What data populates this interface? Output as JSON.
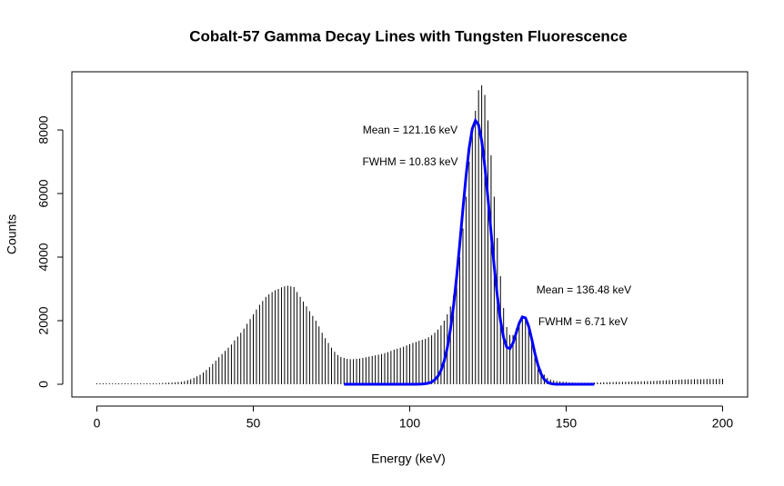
{
  "chart_data": {
    "type": "spike",
    "title": "Cobalt-57 Gamma Decay Lines with Tungsten Fluorescence",
    "x_label": "Energy (keV)",
    "y_label": "Counts",
    "annotations": [
      "Mean = 121.16 keV",
      "FWHM = 10.83 keV",
      "Mean = 136.48 keV",
      "FWHM = 6.71 keV"
    ],
    "xlim": [
      -8,
      208
    ],
    "xticks": [
      0,
      50,
      100,
      150,
      200
    ],
    "ylim": [
      -400,
      9830
    ],
    "yticks": [
      0,
      2000,
      4000,
      6000,
      8000
    ],
    "series": [
      {
        "type": "spike",
        "color": "#000000",
        "x": [
          0,
          1,
          2,
          3,
          4,
          5,
          6,
          7,
          8,
          9,
          10,
          11,
          12,
          13,
          14,
          15,
          16,
          17,
          18,
          19,
          20,
          21,
          22,
          23,
          24,
          25,
          26,
          27,
          28,
          29,
          30,
          31,
          32,
          33,
          34,
          35,
          36,
          37,
          38,
          39,
          40,
          41,
          42,
          43,
          44,
          45,
          46,
          47,
          48,
          49,
          50,
          51,
          52,
          53,
          54,
          55,
          56,
          57,
          58,
          59,
          60,
          61,
          62,
          63,
          64,
          65,
          66,
          67,
          68,
          69,
          70,
          71,
          72,
          73,
          74,
          75,
          76,
          77,
          78,
          79,
          80,
          81,
          82,
          83,
          84,
          85,
          86,
          87,
          88,
          89,
          90,
          91,
          92,
          93,
          94,
          95,
          96,
          97,
          98,
          99,
          100,
          101,
          102,
          103,
          104,
          105,
          106,
          107,
          108,
          109,
          110,
          111,
          112,
          113,
          114,
          115,
          116,
          117,
          118,
          119,
          120,
          121,
          122,
          123,
          124,
          125,
          126,
          127,
          128,
          129,
          130,
          131,
          132,
          133,
          134,
          135,
          136,
          137,
          138,
          139,
          140,
          141,
          142,
          143,
          144,
          145,
          146,
          147,
          148,
          149,
          150,
          151,
          152,
          153,
          154,
          155,
          156,
          157,
          158,
          159,
          160,
          161,
          162,
          163,
          164,
          165,
          166,
          167,
          168,
          169,
          170,
          171,
          172,
          173,
          174,
          175,
          176,
          177,
          178,
          179,
          180,
          181,
          182,
          183,
          184,
          185,
          186,
          187,
          188,
          189,
          190,
          191,
          192,
          193,
          194,
          195,
          196,
          197,
          198,
          199,
          200
        ],
        "values": [
          30,
          30,
          30,
          30,
          30,
          30,
          30,
          30,
          30,
          30,
          30,
          30,
          30,
          30,
          30,
          30,
          30,
          30,
          30,
          30,
          35,
          40,
          45,
          50,
          55,
          60,
          70,
          80,
          100,
          130,
          160,
          200,
          250,
          300,
          370,
          450,
          540,
          640,
          740,
          850,
          950,
          1050,
          1150,
          1250,
          1380,
          1500,
          1620,
          1750,
          1900,
          2050,
          2200,
          2350,
          2500,
          2620,
          2750,
          2830,
          2900,
          2960,
          3000,
          3050,
          3080,
          3100,
          3080,
          3060,
          2900,
          2750,
          2600,
          2450,
          2300,
          2150,
          2000,
          1820,
          1620,
          1450,
          1300,
          1150,
          1020,
          920,
          860,
          830,
          800,
          790,
          790,
          800,
          810,
          830,
          850,
          870,
          890,
          910,
          930,
          950,
          980,
          1010,
          1050,
          1090,
          1120,
          1150,
          1180,
          1220,
          1260,
          1300,
          1330,
          1370,
          1400,
          1430,
          1480,
          1540,
          1620,
          1720,
          1850,
          2000,
          2200,
          2450,
          2800,
          3300,
          4000,
          4900,
          5900,
          7000,
          7900,
          8600,
          9250,
          9400,
          9100,
          8300,
          7200,
          5900,
          4600,
          3400,
          2400,
          1800,
          1550,
          1550,
          1750,
          2000,
          2150,
          2100,
          1800,
          1400,
          1000,
          700,
          450,
          300,
          200,
          150,
          120,
          100,
          90,
          80,
          70,
          60,
          55,
          50,
          50,
          50,
          50,
          50,
          50,
          55,
          60,
          60,
          65,
          65,
          70,
          70,
          75,
          75,
          80,
          80,
          85,
          85,
          90,
          90,
          95,
          95,
          100,
          100,
          105,
          110,
          115,
          120,
          125,
          130,
          135,
          140,
          145,
          150,
          150,
          155,
          155,
          160,
          160,
          160,
          160,
          165,
          165,
          165,
          165,
          170,
          170
        ]
      },
      {
        "type": "line",
        "color": "#0000ff",
        "x": [
          79,
          80,
          81,
          82,
          83,
          84,
          85,
          86,
          87,
          88,
          89,
          90,
          91,
          92,
          93,
          94,
          95,
          96,
          97,
          98,
          99,
          100,
          101,
          102,
          103,
          104,
          105,
          106,
          107,
          108,
          109,
          110,
          111,
          112,
          113,
          114,
          115,
          116,
          117,
          118,
          119,
          120,
          121,
          122,
          123,
          124,
          125,
          126,
          127,
          128,
          129,
          130,
          131,
          132,
          133,
          134,
          135,
          136,
          137,
          138,
          139,
          140,
          141,
          142,
          143,
          144,
          145,
          146,
          147,
          148,
          149,
          150,
          151,
          152,
          153,
          154,
          155,
          156,
          157,
          158,
          159
        ],
        "values": [
          0,
          0,
          0,
          0,
          0,
          0,
          0,
          0,
          0,
          0,
          0,
          0,
          0,
          0,
          0,
          0,
          0,
          0,
          0,
          0,
          0,
          0,
          0,
          0,
          3,
          8,
          17,
          36,
          72,
          139,
          250,
          438,
          724,
          1145,
          1720,
          2470,
          3385,
          4425,
          5515,
          6555,
          7435,
          8040,
          8295,
          8160,
          7660,
          6860,
          5860,
          4770,
          3710,
          2770,
          2006,
          1467,
          1170,
          1122,
          1294,
          1606,
          1924,
          2116,
          2087,
          1830,
          1420,
          977,
          595,
          320,
          153,
          64,
          24,
          8,
          0,
          0,
          0,
          0,
          0,
          0,
          0,
          0,
          0,
          0,
          0,
          0,
          0
        ]
      }
    ]
  }
}
